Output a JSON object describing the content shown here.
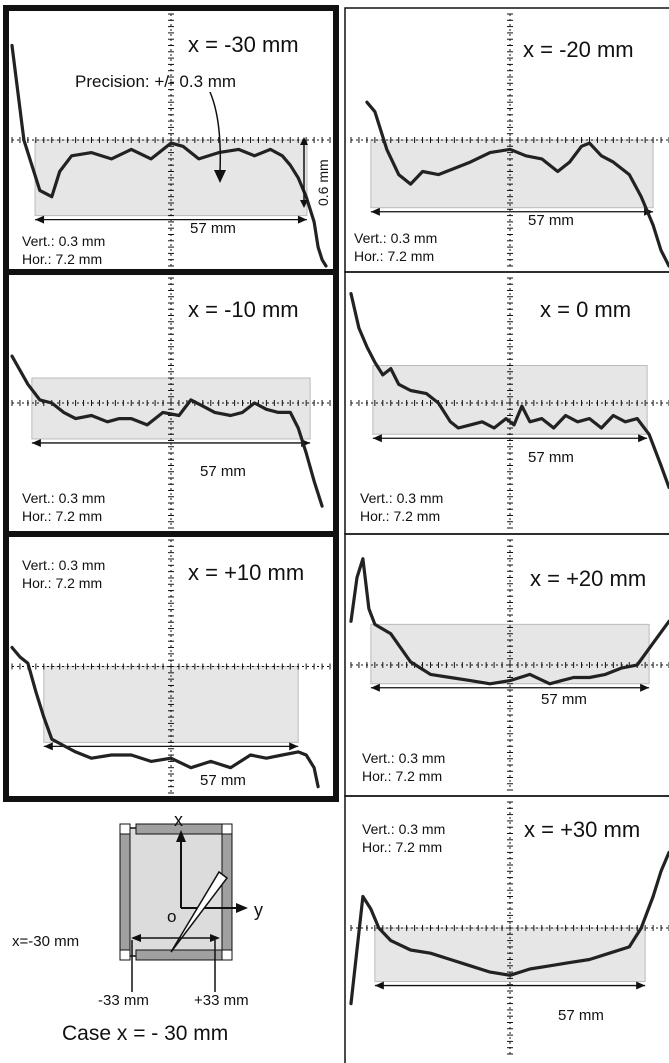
{
  "colors": {
    "trace": "#222222",
    "band": "#e6e6e6",
    "frame": "#111111",
    "axis": "#111111"
  },
  "panels": [
    {
      "title": "x = -30 mm",
      "vert": "Vert.: 0.3 mm",
      "hor": "Hor.: 7.2 mm",
      "span": "57 mm",
      "precision": "Precision: +/-  0.3 mm",
      "band_height": "0.6 mm"
    },
    {
      "title": "x = -20 mm",
      "vert": "Vert.: 0.3 mm",
      "hor": "Hor.: 7.2 mm",
      "span": "57 mm"
    },
    {
      "title": "x = -10 mm",
      "vert": "Vert.: 0.3 mm",
      "hor": "Hor.: 7.2 mm",
      "span": "57 mm"
    },
    {
      "title": "x = 0 mm",
      "vert": "Vert.: 0.3 mm",
      "hor": "Hor.: 7.2 mm",
      "span": "57 mm"
    },
    {
      "title": "x = +10 mm",
      "vert": "Vert.: 0.3 mm",
      "hor": "Hor.: 7.2 mm",
      "span": "57 mm"
    },
    {
      "title": "x = +20 mm",
      "vert": "Vert.: 0.3 mm",
      "hor": "Hor.: 7.2 mm",
      "span": "57 mm"
    },
    {
      "title": "x = +30 mm",
      "vert": "Vert.: 0.3 mm",
      "hor": "Hor.: 7.2 mm",
      "span": "57 mm"
    }
  ],
  "schematic": {
    "axis_x": "x",
    "axis_y": "y",
    "origin": "o",
    "case_label": "x=-30 mm",
    "left_mark": "-33 mm",
    "right_mark": "+33 mm",
    "caption": "Case x = - 30 mm"
  },
  "chart_data": [
    {
      "type": "line",
      "title": "x = -30 mm",
      "xlabel": "",
      "ylabel": "",
      "xlim": [
        -4,
        4
      ],
      "ylim": [
        -4,
        4
      ],
      "grid": false,
      "band": {
        "x": [
          -3.42,
          3.42
        ],
        "y": [
          -2.4,
          0
        ]
      },
      "series": [
        {
          "x": [
            -4.0,
            -3.7,
            -3.3,
            -3.0,
            -2.8,
            -2.5,
            -2.0,
            -1.5,
            -1.0,
            -0.5,
            0.0,
            0.3,
            0.7,
            1.2,
            1.7,
            2.1,
            2.5,
            2.8,
            3.0,
            3.2,
            3.4,
            3.6,
            3.7,
            3.8,
            3.9
          ],
          "y": [
            3.0,
            0.0,
            -1.6,
            -1.8,
            -1.0,
            -0.5,
            -0.4,
            -0.6,
            -0.3,
            -0.6,
            -0.1,
            -0.2,
            -0.6,
            -0.4,
            -0.3,
            -0.5,
            -0.3,
            -0.5,
            -0.8,
            -1.2,
            -1.8,
            -2.6,
            -3.4,
            -3.8,
            -4.0
          ]
        }
      ]
    },
    {
      "type": "line",
      "title": "x = -20 mm",
      "xlabel": "",
      "ylabel": "",
      "xlim": [
        -4,
        4
      ],
      "ylim": [
        -4,
        4
      ],
      "grid": false,
      "band": {
        "x": [
          -3.5,
          3.6
        ],
        "y": [
          -2.15,
          0
        ]
      },
      "series": [
        {
          "x": [
            -3.6,
            -3.4,
            -3.1,
            -2.8,
            -2.5,
            -2.2,
            -1.8,
            -1.4,
            -1.0,
            -0.5,
            0.0,
            0.4,
            0.8,
            1.2,
            1.5,
            1.8,
            2.0,
            2.3,
            2.6,
            3.0,
            3.3,
            3.6,
            3.8,
            4.0
          ],
          "y": [
            1.2,
            0.9,
            -0.3,
            -1.1,
            -1.4,
            -1.0,
            -1.1,
            -0.9,
            -0.7,
            -0.4,
            -0.3,
            -0.5,
            -0.6,
            -1.0,
            -0.7,
            -0.2,
            -0.1,
            -0.5,
            -0.7,
            -1.1,
            -1.8,
            -2.7,
            -3.5,
            -4.0
          ]
        }
      ]
    },
    {
      "type": "line",
      "title": "x = -10 mm",
      "xlabel": "",
      "ylabel": "",
      "xlim": [
        -4,
        4
      ],
      "ylim": [
        -4,
        4
      ],
      "grid": false,
      "band": {
        "x": [
          -3.5,
          3.5
        ],
        "y": [
          -1.15,
          0.8
        ]
      },
      "series": [
        {
          "x": [
            -4.0,
            -3.6,
            -3.3,
            -3.0,
            -2.7,
            -2.4,
            -2.0,
            -1.6,
            -1.3,
            -1.0,
            -0.6,
            -0.2,
            0.2,
            0.5,
            0.8,
            1.1,
            1.5,
            1.8,
            2.1,
            2.4,
            2.7,
            3.0,
            3.2,
            3.4,
            3.6,
            3.8
          ],
          "y": [
            1.5,
            0.6,
            0.1,
            0.0,
            -0.3,
            -0.5,
            -0.4,
            -0.6,
            -0.5,
            -0.5,
            -0.7,
            -0.3,
            -0.4,
            0.1,
            -0.1,
            -0.3,
            -0.4,
            -0.3,
            0.0,
            -0.2,
            -0.3,
            -0.3,
            -0.8,
            -1.6,
            -2.5,
            -3.3
          ]
        }
      ]
    },
    {
      "type": "line",
      "title": "x = 0 mm",
      "xlabel": "",
      "ylabel": "",
      "xlim": [
        -4,
        4
      ],
      "ylim": [
        -4,
        4
      ],
      "grid": false,
      "band": {
        "x": [
          -3.45,
          3.45
        ],
        "y": [
          -1.0,
          1.2
        ]
      },
      "series": [
        {
          "x": [
            -4.0,
            -3.8,
            -3.6,
            -3.4,
            -3.2,
            -3.0,
            -2.8,
            -2.5,
            -2.1,
            -1.8,
            -1.5,
            -1.3,
            -1.0,
            -0.7,
            -0.4,
            -0.1,
            0.1,
            0.3,
            0.5,
            0.8,
            1.1,
            1.4,
            1.7,
            2.0,
            2.3,
            2.6,
            2.9,
            3.2,
            3.5,
            3.8,
            4.0
          ],
          "y": [
            3.5,
            2.4,
            1.8,
            1.3,
            0.9,
            1.1,
            0.6,
            0.4,
            0.3,
            0.0,
            -0.6,
            -0.8,
            -0.7,
            -0.6,
            -0.8,
            -0.5,
            -0.7,
            -0.1,
            -0.6,
            -0.5,
            -0.8,
            -0.4,
            -0.6,
            -0.5,
            -0.8,
            -0.4,
            -0.6,
            -0.5,
            -1.0,
            -2.0,
            -2.7
          ]
        }
      ]
    },
    {
      "type": "line",
      "title": "x = +10 mm",
      "xlabel": "",
      "ylabel": "",
      "xlim": [
        -4,
        4
      ],
      "ylim": [
        -4,
        4
      ],
      "grid": false,
      "band": {
        "x": [
          -3.2,
          3.2
        ],
        "y": [
          -2.4,
          0
        ]
      },
      "series": [
        {
          "x": [
            -4.0,
            -3.8,
            -3.6,
            -3.4,
            -3.2,
            -3.0,
            -2.7,
            -2.4,
            -2.0,
            -1.5,
            -1.0,
            -0.5,
            0.0,
            0.5,
            1.0,
            1.5,
            2.0,
            2.4,
            2.8,
            3.2,
            3.4,
            3.6,
            3.7
          ],
          "y": [
            0.6,
            0.3,
            0.1,
            -0.8,
            -1.6,
            -2.3,
            -2.5,
            -2.7,
            -2.9,
            -2.8,
            -2.8,
            -3.0,
            -2.9,
            -3.2,
            -3.0,
            -3.2,
            -2.8,
            -2.9,
            -2.8,
            -2.7,
            -2.8,
            -3.2,
            -3.8
          ]
        }
      ]
    },
    {
      "type": "line",
      "title": "x = +20 mm",
      "xlabel": "",
      "ylabel": "",
      "xlim": [
        -4,
        4
      ],
      "ylim": [
        -4,
        4
      ],
      "grid": false,
      "band": {
        "x": [
          -3.5,
          3.5
        ],
        "y": [
          -0.6,
          1.3
        ]
      },
      "series": [
        {
          "x": [
            -4.0,
            -3.85,
            -3.7,
            -3.55,
            -3.4,
            -3.0,
            -2.5,
            -2.0,
            -1.5,
            -1.0,
            -0.5,
            0.0,
            0.5,
            1.0,
            1.3,
            1.6,
            2.0,
            2.4,
            2.8,
            3.2,
            3.6,
            4.0
          ],
          "y": [
            1.4,
            2.8,
            3.4,
            1.8,
            1.3,
            1.0,
            0.1,
            -0.3,
            -0.4,
            -0.5,
            -0.6,
            -0.5,
            -0.3,
            -0.6,
            -0.5,
            -0.4,
            -0.4,
            -0.3,
            -0.1,
            0.0,
            0.7,
            1.4
          ]
        }
      ]
    },
    {
      "type": "line",
      "title": "x = +30 mm",
      "xlabel": "",
      "ylabel": "",
      "xlim": [
        -4,
        4
      ],
      "ylim": [
        -4,
        4
      ],
      "grid": false,
      "band": {
        "x": [
          -3.4,
          3.4
        ],
        "y": [
          -1.7,
          0
        ]
      },
      "series": [
        {
          "x": [
            -4.0,
            -3.7,
            -3.5,
            -3.3,
            -3.0,
            -2.5,
            -2.0,
            -1.5,
            -1.0,
            -0.5,
            0.0,
            0.5,
            1.0,
            1.5,
            2.0,
            2.5,
            3.0,
            3.3,
            3.6,
            3.8,
            4.0
          ],
          "y": [
            -2.4,
            1.0,
            0.6,
            0.0,
            -0.4,
            -0.7,
            -0.8,
            -1.0,
            -1.2,
            -1.4,
            -1.5,
            -1.3,
            -1.2,
            -1.1,
            -1.0,
            -0.8,
            -0.6,
            0.0,
            1.0,
            1.8,
            2.4
          ]
        }
      ]
    }
  ]
}
